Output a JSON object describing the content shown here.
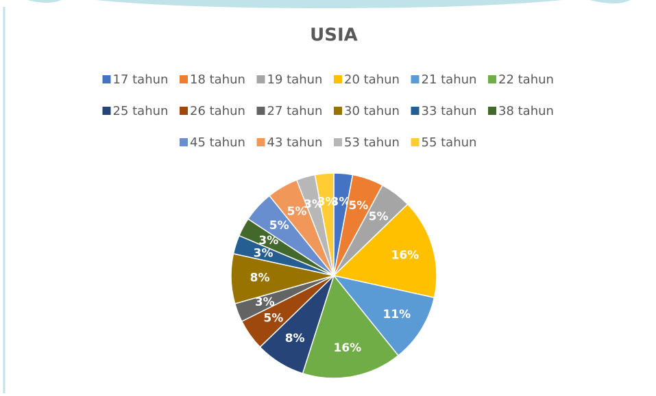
{
  "chart_data": {
    "type": "pie",
    "title": "USIA",
    "categories": [
      "17 tahun",
      "18 tahun",
      "19 tahun",
      "20 tahun",
      "21 tahun",
      "22 tahun",
      "25 tahun",
      "26 tahun",
      "27 tahun",
      "30 tahun",
      "33 tahun",
      "38 tahun",
      "45 tahun",
      "43 tahun",
      "53 tahun",
      "55 tahun"
    ],
    "values": [
      3,
      5,
      5,
      16,
      11,
      16,
      8,
      5,
      3,
      8,
      3,
      3,
      5,
      5,
      3,
      3
    ],
    "value_labels": [
      "3%",
      "5%",
      "5%",
      "16%",
      "11%",
      "16%",
      "8%",
      "5%",
      "3%",
      "8%",
      "3%",
      "3%",
      "5%",
      "5%",
      "3%",
      "3%"
    ],
    "colors": [
      "#4472c4",
      "#ed7d31",
      "#a5a5a5",
      "#ffc000",
      "#5b9bd5",
      "#70ad47",
      "#264478",
      "#9e480e",
      "#636363",
      "#997300",
      "#255e91",
      "#43682b",
      "#698ed0",
      "#f1975a",
      "#b7b7b7",
      "#ffcd33"
    ],
    "legend": "top"
  }
}
